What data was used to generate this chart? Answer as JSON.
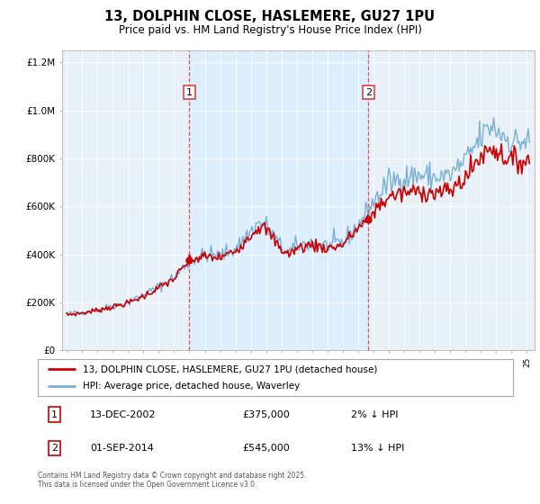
{
  "title": "13, DOLPHIN CLOSE, HASLEMERE, GU27 1PU",
  "subtitle": "Price paid vs. HM Land Registry's House Price Index (HPI)",
  "legend_line1": "13, DOLPHIN CLOSE, HASLEMERE, GU27 1PU (detached house)",
  "legend_line2": "HPI: Average price, detached house, Waverley",
  "annotation1_label": "1",
  "annotation1_date": "13-DEC-2002",
  "annotation1_price": "£375,000",
  "annotation1_note": "2% ↓ HPI",
  "annotation2_label": "2",
  "annotation2_date": "01-SEP-2014",
  "annotation2_price": "£545,000",
  "annotation2_note": "13% ↓ HPI",
  "vline1_year": 2003.0,
  "vline2_year": 2014.67,
  "transaction1_year": 2003.0,
  "transaction1_price": 375000,
  "transaction2_year": 2014.67,
  "transaction2_price": 545000,
  "price_color": "#cc0000",
  "hpi_color": "#7ab0d4",
  "vline_color": "#dd4444",
  "shade_color": "#ddeeff",
  "plot_bg": "#e8f0f8",
  "ylim": [
    0,
    1250000
  ],
  "xlim_start": 1994.7,
  "xlim_end": 2025.5,
  "footer": "Contains HM Land Registry data © Crown copyright and database right 2025.\nThis data is licensed under the Open Government Licence v3.0."
}
